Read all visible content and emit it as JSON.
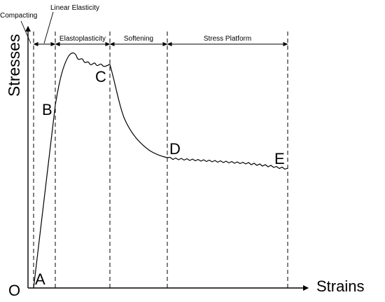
{
  "axes": {
    "y_label": "Stresses",
    "x_label": "Strains",
    "origin_label": "O"
  },
  "stages": {
    "compacting": "Compacting",
    "linear_elasticity": "Linear Elasticity",
    "elastoplasticity": "Elastoplasticity",
    "softening": "Softening",
    "stress_platform": "Stress Platform"
  },
  "points": {
    "a": "A",
    "b": "B",
    "c": "C",
    "d": "D",
    "e": "E"
  },
  "colors": {
    "ink": "#000000",
    "background": "#ffffff"
  }
}
